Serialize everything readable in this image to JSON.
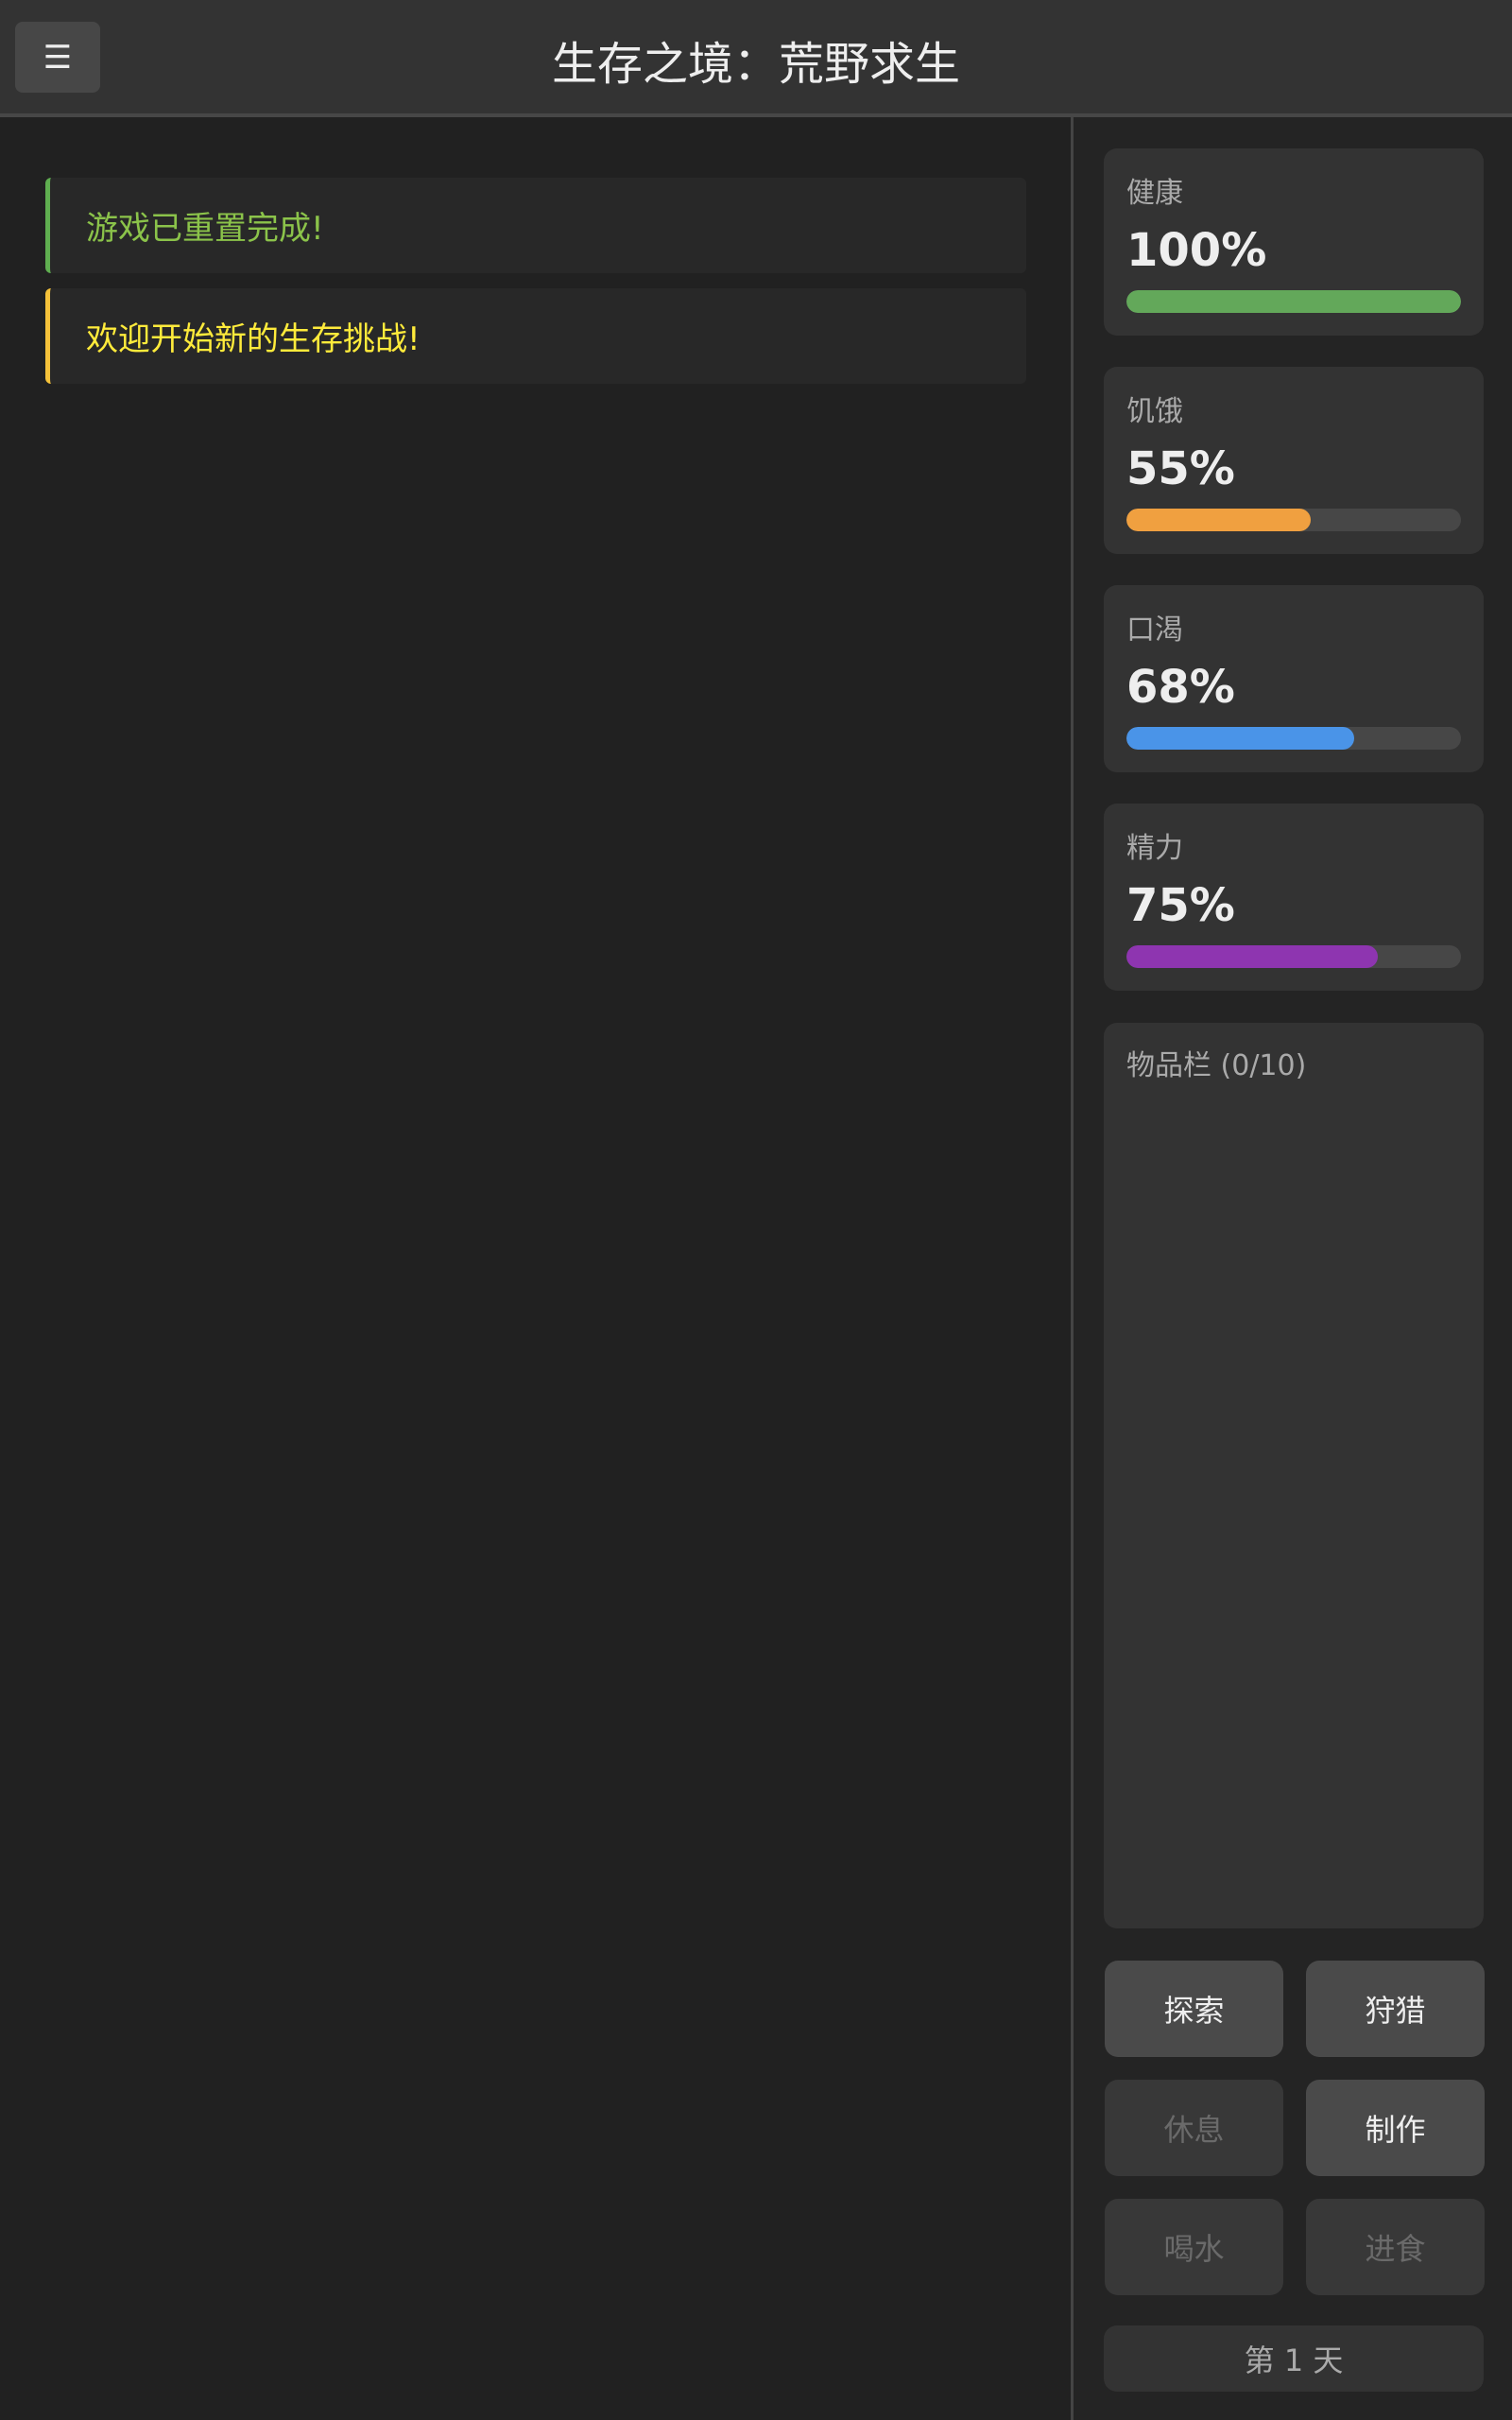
{
  "header": {
    "menu_icon": "☰",
    "title": "生存之境：荒野求生"
  },
  "messages": [
    {
      "text": "游戏已重置完成!",
      "color": "#8bc34a",
      "border": "#5fae50"
    },
    {
      "text": "欢迎开始新的生存挑战!",
      "color": "#ffeb3b",
      "border": "#f5c23a"
    }
  ],
  "stats": [
    {
      "label": "健康",
      "value": "100%",
      "percent": 100,
      "color": "#63a85a"
    },
    {
      "label": "饥饿",
      "value": "55%",
      "percent": 55,
      "color": "#f0a040"
    },
    {
      "label": "口渴",
      "value": "68%",
      "percent": 68,
      "color": "#4a94e8"
    },
    {
      "label": "精力",
      "value": "75%",
      "percent": 75,
      "color": "#8e35b0"
    }
  ],
  "inventory": {
    "label": "物品栏 (0/10)"
  },
  "actions": [
    {
      "label": "探索",
      "enabled": true
    },
    {
      "label": "狩猎",
      "enabled": true
    },
    {
      "label": "休息",
      "enabled": false
    },
    {
      "label": "制作",
      "enabled": true
    },
    {
      "label": "喝水",
      "enabled": false
    },
    {
      "label": "进食",
      "enabled": false
    }
  ],
  "day": "第 1 天"
}
